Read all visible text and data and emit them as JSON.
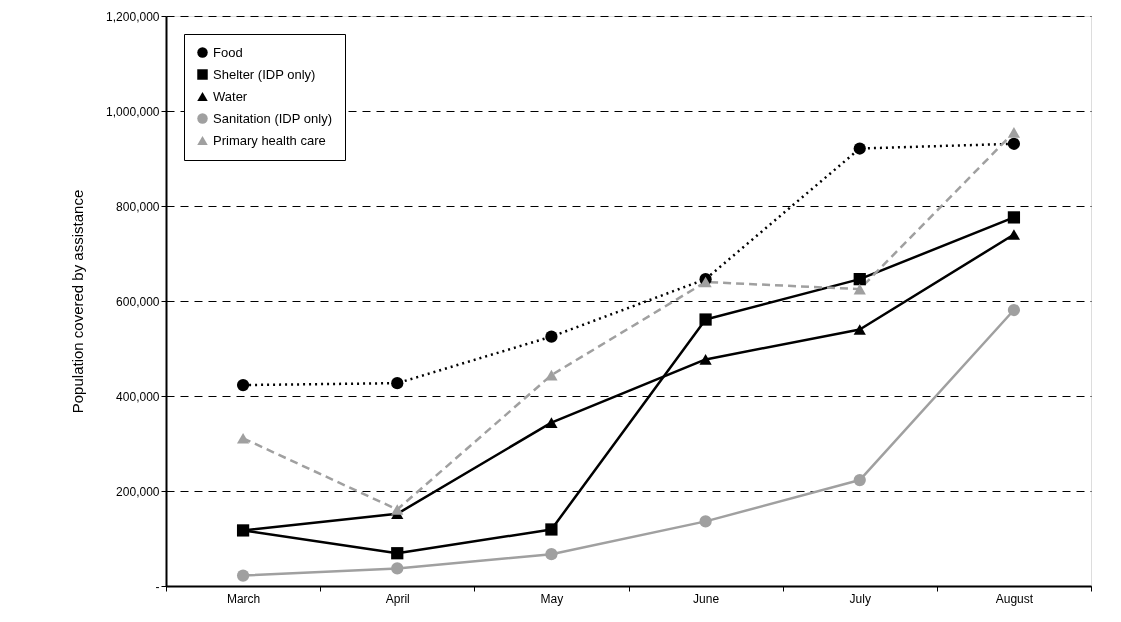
{
  "chart_data": {
    "type": "line",
    "ylabel": "Population covered by assistance",
    "categories": [
      "March",
      "April",
      "May",
      "June",
      "July",
      "August"
    ],
    "ylim": [
      0,
      1200000
    ],
    "yticks": [
      {
        "value": 0,
        "label": "-"
      },
      {
        "value": 200000,
        "label": "200,000"
      },
      {
        "value": 400000,
        "label": "400,000"
      },
      {
        "value": 600000,
        "label": "600,000"
      },
      {
        "value": 800000,
        "label": "800,000"
      },
      {
        "value": 1000000,
        "label": "1,000,000"
      },
      {
        "value": 1200000,
        "label": "1,200,000"
      }
    ],
    "grid": "y",
    "legend": "top left",
    "series": [
      {
        "name": "Food",
        "color": "#000000",
        "marker": "circle",
        "line_style": "dotted",
        "values": [
          423000,
          427000,
          525000,
          646000,
          921000,
          931000
        ]
      },
      {
        "name": "Shelter (IDP only)",
        "color": "#000000",
        "marker": "square",
        "line_style": "solid",
        "values": [
          117000,
          69000,
          119000,
          561000,
          646000,
          776000
        ]
      },
      {
        "name": "Water",
        "color": "#000000",
        "marker": "triangle",
        "line_style": "solid",
        "values": [
          117000,
          152000,
          344000,
          477000,
          540000,
          740000
        ]
      },
      {
        "name": "Sanitation (IDP only)",
        "color": "#a0a0a0",
        "marker": "circle",
        "line_style": "solid",
        "values": [
          22000,
          37000,
          67000,
          136000,
          223000,
          581000
        ]
      },
      {
        "name": "Primary health care",
        "color": "#a0a0a0",
        "marker": "triangle",
        "line_style": "dashed",
        "values": [
          311000,
          161000,
          444000,
          640000,
          625000,
          955000
        ]
      }
    ]
  }
}
